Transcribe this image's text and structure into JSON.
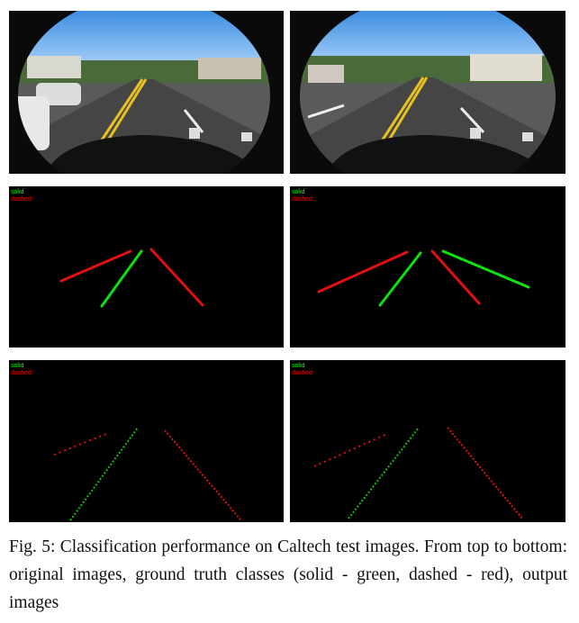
{
  "panels": [
    {
      "legend": [
        "solid",
        "dashed"
      ]
    },
    {
      "legend": [
        "solid",
        "dashed"
      ]
    },
    {
      "legend": [
        "solid",
        "dashed"
      ]
    },
    {
      "legend": [
        "solid",
        "dashed"
      ]
    }
  ],
  "caption": "Fig. 5: Classification performance on Caltech test images. From top to bottom: original images, ground truth classes (solid - green, dashed - red), output images"
}
